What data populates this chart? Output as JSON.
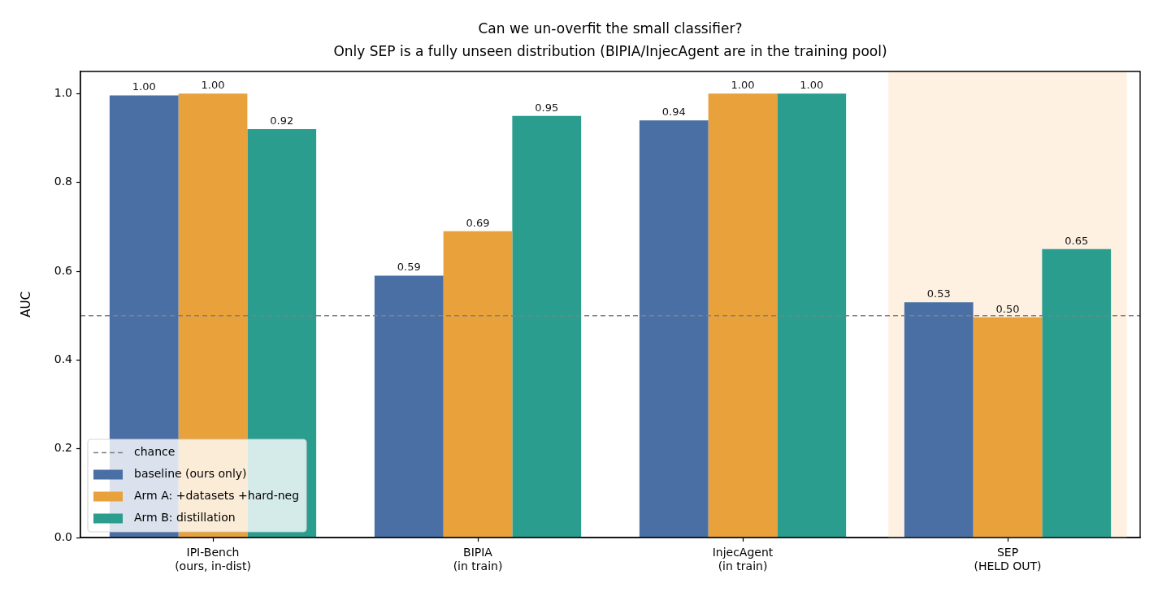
{
  "chart_data": {
    "type": "bar",
    "title": "Can we un-overfit the small classifier?\nOnly SEP is a fully unseen distribution (BIPIA/InjecAgent are in the training pool)",
    "ylabel": "AUC",
    "categories": [
      "IPI-Bench\n(ours, in-dist)",
      "BIPIA\n(in train)",
      "InjecAgent\n(in train)",
      "SEP\n(HELD OUT)"
    ],
    "series": [
      {
        "name": "baseline (ours only)",
        "color": "#4a6fa5",
        "values": [
          0.996,
          0.59,
          0.94,
          0.53
        ],
        "value_labels": [
          "1.00",
          "0.59",
          "0.94",
          "0.53"
        ]
      },
      {
        "name": "Arm A: +datasets +hard-neg",
        "color": "#e8a13b",
        "values": [
          1.0,
          0.69,
          1.0,
          0.496
        ],
        "value_labels": [
          "1.00",
          "0.69",
          "1.00",
          "0.50"
        ]
      },
      {
        "name": "Arm B: distillation",
        "color": "#2a9d8f",
        "values": [
          0.92,
          0.95,
          1.0,
          0.65
        ],
        "value_labels": [
          "0.92",
          "0.95",
          "1.00",
          "0.65"
        ]
      }
    ],
    "ylim": [
      0,
      1.05
    ],
    "yticks": [
      {
        "value": 0,
        "label": "0.0"
      },
      0.2,
      0.4,
      0.6,
      0.8,
      {
        "value": 1,
        "label": "1.0"
      }
    ],
    "ref_lines": [
      {
        "axis": "y",
        "value": 0.5,
        "label": "chance",
        "color": "#808080",
        "line_style": "dashed"
      }
    ],
    "bands": [
      {
        "axis": "x",
        "from": "SEP\n(HELD OUT)",
        "to": "SEP\n(HELD OUT)",
        "color": "#fef1e2"
      }
    ],
    "legend": "bottom left"
  }
}
